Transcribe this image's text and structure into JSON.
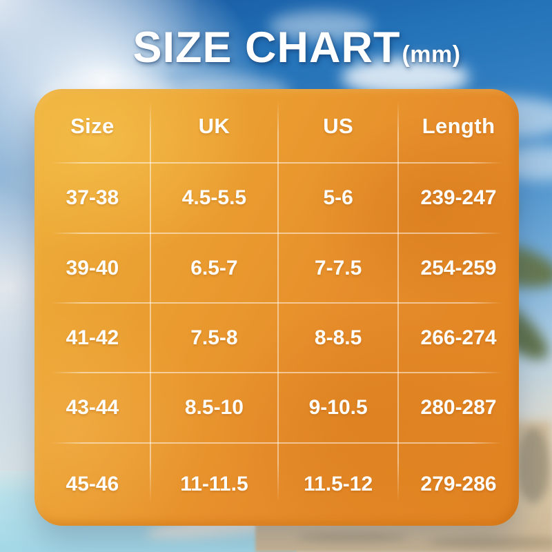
{
  "title": {
    "main": "SIZE CHART",
    "unit": "(mm)"
  },
  "chart_data": {
    "type": "table",
    "title": "SIZE CHART (mm)",
    "unit": "mm",
    "columns": [
      "Size",
      "UK",
      "US",
      "Length"
    ],
    "rows": [
      [
        "37-38",
        "4.5-5.5",
        "5-6",
        "239-247"
      ],
      [
        "39-40",
        "6.5-7",
        "7-7.5",
        "254-259"
      ],
      [
        "41-42",
        "7.5-8",
        "8-8.5",
        "266-274"
      ],
      [
        "43-44",
        "8.5-10",
        "9-10.5",
        "280-287"
      ],
      [
        "45-46",
        "11-11.5",
        "11.5-12",
        "279-286"
      ]
    ]
  },
  "colors": {
    "title_text": "#ffffff",
    "table_text": "#ffffff",
    "panel_orange_light": "#eeb03a",
    "panel_orange": "#e68c2a",
    "panel_orange_deep": "#e0811f",
    "divider_white": "rgba(255,255,255,0.5)",
    "sky_deep_blue": "#14559e",
    "sky_light_blue": "#6fa9d7",
    "sea_turquoise": "#a3d8e7",
    "sand_beige": "#d6c3a2",
    "palm_green": "#5d6e44"
  }
}
